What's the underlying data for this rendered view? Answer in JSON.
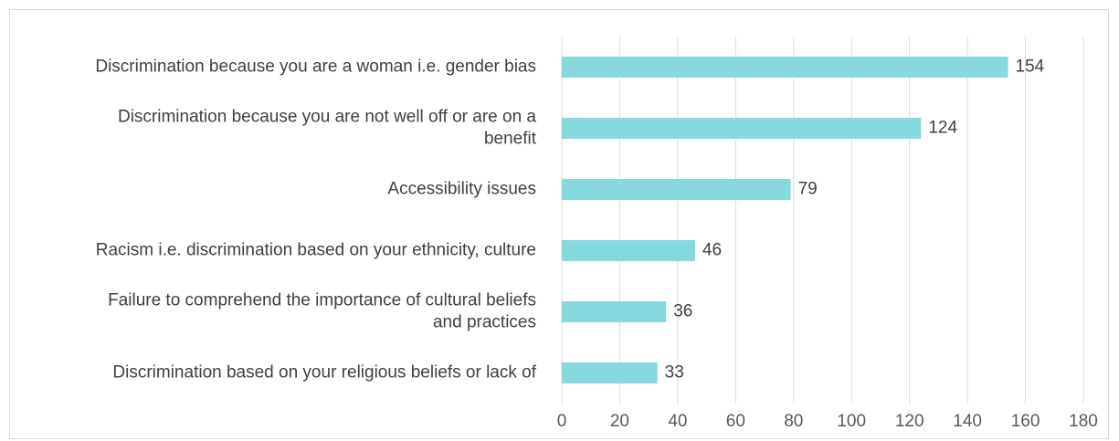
{
  "chart_data": {
    "type": "bar",
    "orientation": "horizontal",
    "title": "",
    "xlabel": "",
    "ylabel": "",
    "categories": [
      [
        "Discrimination because you are a woman i.e. gender bias"
      ],
      [
        "Discrimination because you are not well off or are on a",
        "benefit"
      ],
      [
        "Accessibility issues"
      ],
      [
        "Racism i.e. discrimination based on your ethnicity, culture"
      ],
      [
        "Failure to comprehend the importance of cultural beliefs",
        "and practices"
      ],
      [
        "Discrimination based on your religious beliefs or lack of"
      ]
    ],
    "values": [
      154,
      124,
      79,
      46,
      36,
      33
    ],
    "xlim": [
      0,
      180
    ],
    "xticks": [
      0,
      20,
      40,
      60,
      80,
      100,
      120,
      140,
      160,
      180
    ],
    "grid": "vertical",
    "legend": "none",
    "bar_color": "#86d9dc",
    "grid_color": "#d9d9d9"
  }
}
